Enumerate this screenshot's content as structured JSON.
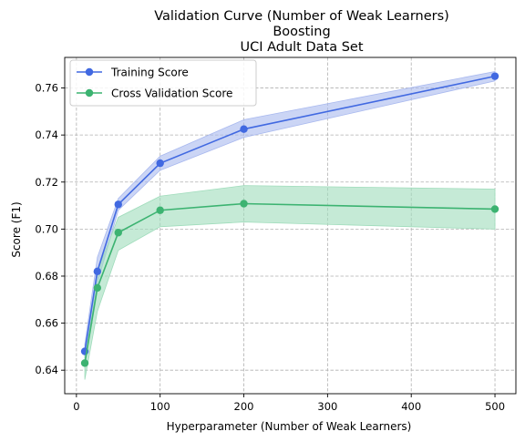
{
  "chart_data": {
    "type": "line",
    "title": [
      "Validation Curve (Number of Weak Learners)",
      "Boosting",
      "UCI Adult Data Set"
    ],
    "xlabel": "Hyperparameter (Number of Weak Learners)",
    "ylabel": "Score (F1)",
    "xlim": [
      -14,
      525
    ],
    "ylim": [
      0.63,
      0.773
    ],
    "xticks": [
      0,
      100,
      200,
      300,
      400,
      500
    ],
    "yticks": [
      0.64,
      0.66,
      0.68,
      0.7,
      0.72,
      0.74,
      0.76
    ],
    "ytick_labels": [
      "0.64",
      "0.66",
      "0.68",
      "0.70",
      "0.72",
      "0.74",
      "0.76"
    ],
    "grid": true,
    "legend_position": "upper-left",
    "x": [
      10,
      25,
      50,
      100,
      200,
      500
    ],
    "series": [
      {
        "name": "Training Score",
        "color": "#4169e1",
        "band_color": "#a9b9ef",
        "values": [
          0.648,
          0.682,
          0.7105,
          0.728,
          0.7425,
          0.765
        ],
        "lower": [
          0.645,
          0.677,
          0.708,
          0.725,
          0.739,
          0.763
        ],
        "upper": [
          0.651,
          0.688,
          0.713,
          0.731,
          0.7465,
          0.767
        ]
      },
      {
        "name": "Cross Validation Score",
        "color": "#3cb371",
        "band_color": "#9fdcbb",
        "values": [
          0.643,
          0.675,
          0.6985,
          0.708,
          0.7108,
          0.7085
        ],
        "lower": [
          0.636,
          0.665,
          0.691,
          0.701,
          0.703,
          0.7
        ],
        "upper": [
          0.648,
          0.682,
          0.705,
          0.714,
          0.7185,
          0.717
        ]
      }
    ]
  }
}
